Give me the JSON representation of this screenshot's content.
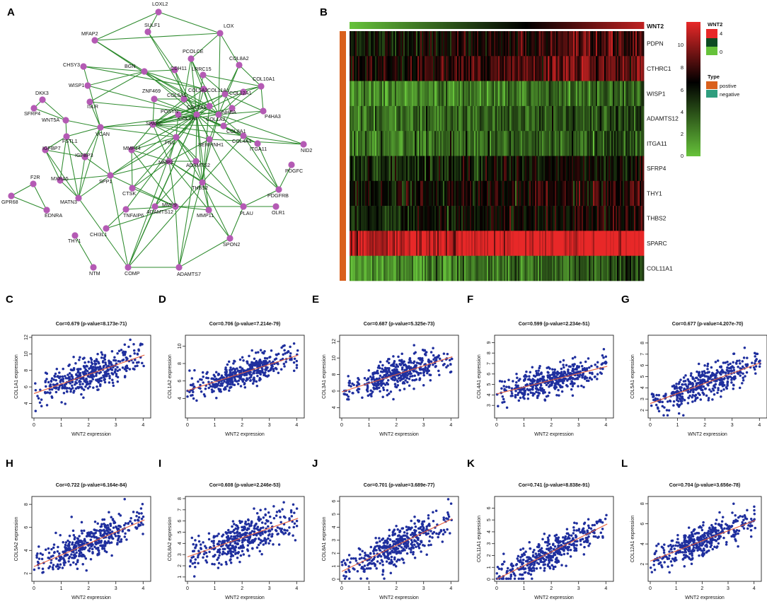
{
  "panels": {
    "A": "A",
    "B": "B",
    "C": "C",
    "D": "D",
    "E": "E",
    "F": "F",
    "G": "G",
    "H": "H",
    "I": "I",
    "J": "J",
    "K": "K",
    "L": "L"
  },
  "network": {
    "node_color": "#b45ab4",
    "edge_color": "#2e8b2e",
    "nodes": [
      "LOXL2",
      "MFAP2",
      "SULF1",
      "LOX",
      "CHSY3",
      "PCOLCE",
      "COL8A2",
      "LRRC15",
      "COL10A1",
      "WISP1",
      "BGN",
      "CDH11",
      "ZNF469",
      "COL5A1",
      "COL5A2",
      "COL11A1",
      "COL12A1",
      "COL3A1",
      "COL1A1",
      "COL1A2",
      "DKK3",
      "ISLR",
      "SFRP4",
      "WNT5A",
      "POSTN",
      "P4HA3",
      "VCAN",
      "SPARC",
      "INHBA",
      "COL8A1",
      "FSTL1",
      "FN1",
      "SERPINH1",
      "COL4A1",
      "IGFBP7",
      "MMP14",
      "ITGA11",
      "NID2",
      "IGFBP3",
      "MMP2",
      "ADAMTS2",
      "PDGFC",
      "F2R",
      "MXRA5",
      "SPP1",
      "CTSK",
      "THBS2",
      "PDGFRB",
      "GPR68",
      "MATN3",
      "EDNRA",
      "TNFAIP6",
      "ADAMTS12",
      "MMP9",
      "MMP11",
      "PLAU",
      "OLR1",
      "CHI3L1",
      "SPON2",
      "THY1",
      "NTM",
      "COMP",
      "ADAMTS7"
    ],
    "visible_labels": [
      "LOXL2",
      "MFAP2",
      "SULF1",
      "LOX",
      "CHSY3",
      "PCOLCE",
      "CDH11",
      "COL8A2",
      "LRRC15",
      "COL10A1",
      "WISP1",
      "BGN",
      "ZNF469",
      "DKK3",
      "ISLR",
      "SFRP4",
      "WNT5A",
      "P4HA3",
      "VCAN",
      "SPARC",
      "COL8A1",
      "FSTL1",
      "FN1",
      "SERPINH1",
      "COL4A1",
      "IGFBP7",
      "MMP14",
      "ITGA11",
      "NID2",
      "IGFBP3",
      "MMP2",
      "ADAMTS2",
      "PDGFC",
      "F2R",
      "MXRA5",
      "SPP1",
      "CTSK",
      "THBS2",
      "PDGFRB",
      "GPR68",
      "MATN3",
      "EDNRA",
      "TNFAIP6",
      "ADAMTS12",
      "MMP9",
      "MMP11",
      "PLAU",
      "OLR1",
      "CHI3L1",
      "SPON2",
      "THY1",
      "NTM",
      "COMP",
      "ADAMTS7",
      "COL5A1",
      "COL5A2",
      "COL11A1",
      "COL12A1",
      "COL3A1",
      "COL1A1",
      "COL1A2",
      "POSTN",
      "INHBA"
    ]
  },
  "heatmap": {
    "top_gene": "WNT2",
    "genes": [
      "PDPN",
      "CTHRC1",
      "WISP1",
      "ADAMTS12",
      "ITGA11",
      "SFRP4",
      "THY1",
      "THBS2",
      "SPARC",
      "COL11A1"
    ],
    "gene_base_values": [
      6.5,
      7.5,
      2.3,
      3.3,
      3.0,
      5.2,
      6.2,
      6.0,
      10.5,
      2.6
    ],
    "legend_main": {
      "max_label": "10",
      "ticks": [
        "10",
        "8",
        "6",
        "4",
        "2",
        "0"
      ]
    },
    "legend_wnt2": {
      "title": "WNT2",
      "ticks": [
        "4",
        "2",
        "0"
      ],
      "top_label": "4",
      "bottom_label": "0"
    },
    "legend_type": {
      "title": "Type",
      "items": [
        {
          "label": "postive",
          "color": "#d9601c"
        },
        {
          "label": "negative",
          "color": "#2f9e7e"
        }
      ]
    },
    "colors": {
      "low": "#66c23a",
      "mid": "#000000",
      "high": "#e82828",
      "positive": "#d9601c"
    }
  },
  "chart_data": [
    {
      "type": "scatter",
      "panel": "C",
      "title": "Cor=0.679 (p-value=8.173e-71)",
      "xlabel": "WNT2 expression",
      "ylabel": "COL1A1 expression",
      "xlim": [
        0,
        4.2
      ],
      "ylim": [
        2.5,
        12
      ],
      "xticks": [
        "0",
        "1",
        "2",
        "3",
        "4"
      ],
      "yticks": [
        "4",
        "6",
        "8",
        "10",
        "12"
      ],
      "fit": {
        "intercept": 5.2,
        "slope": 1.15
      },
      "noise": 1.25,
      "n_points": 420,
      "point_color": "#1f2f9e",
      "line_color": "#e8603c"
    },
    {
      "type": "scatter",
      "panel": "D",
      "title": "Cor=0.706 (p-value=7.214e-79)",
      "xlabel": "WNT2 expression",
      "ylabel": "COL1A2 expression",
      "xlim": [
        0,
        4.2
      ],
      "ylim": [
        2,
        11
      ],
      "xticks": [
        "0",
        "1",
        "2",
        "3",
        "4"
      ],
      "yticks": [
        "4",
        "6",
        "8",
        "10"
      ],
      "fit": {
        "intercept": 4.9,
        "slope": 1.0
      },
      "noise": 1.0,
      "n_points": 420,
      "point_color": "#1f2f9e",
      "line_color": "#e8603c"
    },
    {
      "type": "scatter",
      "panel": "E",
      "title": "Cor=0.687 (p-value=5.325e-73)",
      "xlabel": "WNT2 expression",
      "ylabel": "COL3A1 expression",
      "xlim": [
        0,
        4.2
      ],
      "ylim": [
        3,
        12.5
      ],
      "xticks": [
        "0",
        "1",
        "2",
        "3",
        "4"
      ],
      "yticks": [
        "4",
        "6",
        "8",
        "10",
        "12"
      ],
      "fit": {
        "intercept": 5.9,
        "slope": 1.05
      },
      "noise": 1.15,
      "n_points": 420,
      "point_color": "#1f2f9e",
      "line_color": "#e8603c"
    },
    {
      "type": "scatter",
      "panel": "F",
      "title": "Cor=0.599 (p-value=2.234e-51)",
      "xlabel": "WNT2 expression",
      "ylabel": "COL4A1 expression",
      "xlim": [
        0,
        4.2
      ],
      "ylim": [
        2,
        9.5
      ],
      "xticks": [
        "0",
        "1",
        "2",
        "3",
        "4"
      ],
      "yticks": [
        "3",
        "4",
        "5",
        "6",
        "7",
        "8",
        "9"
      ],
      "fit": {
        "intercept": 4.1,
        "slope": 0.65
      },
      "noise": 0.85,
      "n_points": 420,
      "point_color": "#1f2f9e",
      "line_color": "#e8603c"
    },
    {
      "type": "scatter",
      "panel": "G",
      "title": "Cor=0.677 (p-value=4.207e-70)",
      "xlabel": "WNT2 expression",
      "ylabel": "COL5A1 expression",
      "xlim": [
        0,
        4.2
      ],
      "ylim": [
        1.5,
        8.5
      ],
      "xticks": [
        "0",
        "1",
        "2",
        "3",
        "4"
      ],
      "yticks": [
        "2",
        "3",
        "4",
        "5",
        "6",
        "7",
        "8"
      ],
      "fit": {
        "intercept": 2.6,
        "slope": 0.9
      },
      "noise": 0.95,
      "n_points": 420,
      "point_color": "#1f2f9e",
      "line_color": "#e8603c"
    },
    {
      "type": "scatter",
      "panel": "H",
      "title": "Cor=0.722 (p-value=6.164e-84)",
      "xlabel": "WNT2 expression",
      "ylabel": "COL5A2 expression",
      "xlim": [
        0,
        4.2
      ],
      "ylim": [
        1.5,
        8.5
      ],
      "xticks": [
        "0",
        "1",
        "2",
        "3",
        "4"
      ],
      "yticks": [
        "2",
        "4",
        "6",
        "8"
      ],
      "fit": {
        "intercept": 2.6,
        "slope": 1.0
      },
      "noise": 0.9,
      "n_points": 420,
      "point_color": "#1f2f9e",
      "line_color": "#e8603c"
    },
    {
      "type": "scatter",
      "panel": "I",
      "title": "Cor=0.608 (p-value=2.246e-53)",
      "xlabel": "WNT2 expression",
      "ylabel": "COL8A2 expression",
      "xlim": [
        0,
        4.2
      ],
      "ylim": [
        0.8,
        8
      ],
      "xticks": [
        "0",
        "1",
        "2",
        "3",
        "4"
      ],
      "yticks": [
        "1",
        "2",
        "3",
        "4",
        "5",
        "6",
        "7",
        "8"
      ],
      "fit": {
        "intercept": 2.8,
        "slope": 0.85
      },
      "noise": 1.05,
      "n_points": 420,
      "point_color": "#1f2f9e",
      "line_color": "#e8603c"
    },
    {
      "type": "scatter",
      "panel": "J",
      "title": "Cor=0.701 (p-value=3.689e-77)",
      "xlabel": "WNT2 expression",
      "ylabel": "COL8A1 expression",
      "xlim": [
        0,
        4.2
      ],
      "ylim": [
        0,
        6.2
      ],
      "xticks": [
        "0",
        "1",
        "2",
        "3",
        "4"
      ],
      "yticks": [
        "0",
        "1",
        "2",
        "3",
        "4",
        "5",
        "6"
      ],
      "fit": {
        "intercept": 0.6,
        "slope": 1.0
      },
      "noise": 0.85,
      "n_points": 420,
      "point_color": "#1f2f9e",
      "line_color": "#e8603c"
    },
    {
      "type": "scatter",
      "panel": "K",
      "title": "Cor=0.741 (p-value=8.838e-91)",
      "xlabel": "WNT2 expression",
      "ylabel": "COL11A1 expression",
      "xlim": [
        0,
        4.2
      ],
      "ylim": [
        0,
        6.8
      ],
      "xticks": [
        "0",
        "1",
        "2",
        "3",
        "4"
      ],
      "yticks": [
        "0",
        "1",
        "2",
        "3",
        "4",
        "5",
        "6"
      ],
      "fit": {
        "intercept": 0.0,
        "slope": 1.15
      },
      "noise": 0.85,
      "n_points": 420,
      "point_color": "#1f2f9e",
      "line_color": "#e8603c"
    },
    {
      "type": "scatter",
      "panel": "L",
      "title": "Cor=0.704 (p-value=3.656e-78)",
      "xlabel": "WNT2 expression",
      "ylabel": "COL12A1 expression",
      "xlim": [
        0,
        4.2
      ],
      "ylim": [
        0.5,
        8.5
      ],
      "xticks": [
        "0",
        "1",
        "2",
        "3",
        "4"
      ],
      "yticks": [
        "2",
        "4",
        "6",
        "8"
      ],
      "fit": {
        "intercept": 2.3,
        "slope": 1.0
      },
      "noise": 0.9,
      "n_points": 420,
      "point_color": "#1f2f9e",
      "line_color": "#e8603c"
    }
  ]
}
